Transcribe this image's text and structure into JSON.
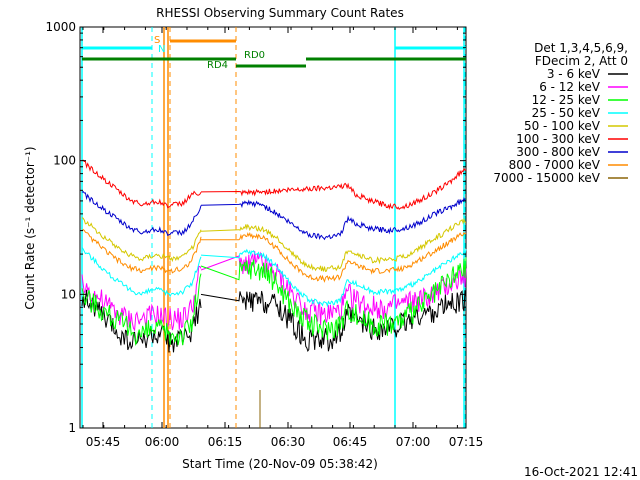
{
  "chart_data": {
    "type": "line",
    "title": "RHESSI Observing Summary Count Rates",
    "xlabel": "Start Time (20-Nov-09 05:38:42)",
    "ylabel": "Count Rate (s⁻¹ detector⁻¹)",
    "yscale": "log",
    "ylim": [
      1,
      1000
    ],
    "xlim_minutes": [
      5.0,
      97.5
    ],
    "x_ticks": [
      {
        "label": "05:45",
        "min": 5.0
      },
      {
        "label": "06:00",
        "min": 20.0
      },
      {
        "label": "06:15",
        "min": 35.0
      },
      {
        "label": "06:30",
        "min": 50.0
      },
      {
        "label": "06:45",
        "min": 65.0
      },
      {
        "label": "07:00",
        "min": 80.0
      },
      {
        "label": "07:15",
        "min": 95.0
      }
    ],
    "y_ticks": [
      {
        "label": "1",
        "value": 1
      },
      {
        "label": "10",
        "value": 10
      },
      {
        "label": "100",
        "value": 100
      },
      {
        "label": "1000",
        "value": 1000
      }
    ],
    "legend": {
      "header": [
        "Det 1,3,4,5,6,9,",
        "FDecim 2, Att 0"
      ],
      "position": "right"
    },
    "series": [
      {
        "name": "3 - 6 keV",
        "color": "#000000",
        "curve": [
          [
            0,
            10
          ],
          [
            6,
            6
          ],
          [
            10,
            4.5
          ],
          [
            13,
            4.5
          ],
          [
            16,
            5
          ],
          [
            19,
            4.5
          ],
          [
            22,
            4.5
          ],
          [
            24,
            5.5
          ],
          [
            26,
            8.5
          ],
          [
            28,
            9
          ],
          [
            32,
            9
          ],
          [
            36,
            8.5
          ],
          [
            40,
            6
          ],
          [
            44,
            4.5
          ],
          [
            48,
            4.5
          ],
          [
            52,
            5
          ],
          [
            54,
            7
          ],
          [
            56,
            6.5
          ],
          [
            60,
            5.5
          ],
          [
            64,
            5.5
          ],
          [
            68,
            6
          ],
          [
            72,
            7
          ],
          [
            76,
            7.5
          ],
          [
            80,
            8.5
          ],
          [
            84,
            9
          ]
        ]
      },
      {
        "name": "6 - 12 keV",
        "color": "#ff00ff",
        "curve": [
          [
            0,
            12
          ],
          [
            6,
            8
          ],
          [
            10,
            6.5
          ],
          [
            13,
            6.5
          ],
          [
            16,
            7
          ],
          [
            19,
            6.5
          ],
          [
            22,
            6.5
          ],
          [
            24,
            8
          ],
          [
            26,
            16
          ],
          [
            28,
            17.5
          ],
          [
            32,
            17
          ],
          [
            36,
            14
          ],
          [
            40,
            10
          ],
          [
            44,
            7.5
          ],
          [
            48,
            7
          ],
          [
            52,
            7.5
          ],
          [
            54,
            10
          ],
          [
            56,
            9
          ],
          [
            60,
            8
          ],
          [
            64,
            8
          ],
          [
            68,
            8.5
          ],
          [
            72,
            9
          ],
          [
            76,
            10
          ],
          [
            80,
            12
          ],
          [
            84,
            14
          ]
        ]
      },
      {
        "name": "12 - 25 keV",
        "color": "#00ff00",
        "curve": [
          [
            0,
            10
          ],
          [
            6,
            7
          ],
          [
            10,
            5.5
          ],
          [
            13,
            5
          ],
          [
            16,
            5.5
          ],
          [
            19,
            5
          ],
          [
            22,
            5
          ],
          [
            24,
            6
          ],
          [
            26,
            14
          ],
          [
            28,
            16
          ],
          [
            32,
            15.5
          ],
          [
            36,
            12
          ],
          [
            40,
            8
          ],
          [
            44,
            6
          ],
          [
            48,
            5.5
          ],
          [
            52,
            6
          ],
          [
            54,
            8
          ],
          [
            56,
            7
          ],
          [
            60,
            6
          ],
          [
            64,
            6
          ],
          [
            68,
            6.5
          ],
          [
            72,
            8
          ],
          [
            76,
            10
          ],
          [
            80,
            13
          ],
          [
            84,
            16
          ]
        ]
      },
      {
        "name": "25 - 50 keV",
        "color": "#00ffff",
        "curve": [
          [
            0,
            22
          ],
          [
            6,
            14
          ],
          [
            10,
            11
          ],
          [
            13,
            10
          ],
          [
            16,
            11
          ],
          [
            19,
            10
          ],
          [
            22,
            10.5
          ],
          [
            24,
            12
          ],
          [
            26,
            19
          ],
          [
            28,
            21
          ],
          [
            32,
            20
          ],
          [
            36,
            16
          ],
          [
            40,
            11.5
          ],
          [
            44,
            9
          ],
          [
            48,
            8.5
          ],
          [
            52,
            9
          ],
          [
            54,
            13
          ],
          [
            56,
            12
          ],
          [
            60,
            10.5
          ],
          [
            64,
            10.5
          ],
          [
            68,
            11
          ],
          [
            72,
            12.5
          ],
          [
            76,
            15
          ],
          [
            80,
            18
          ],
          [
            84,
            21
          ]
        ]
      },
      {
        "name": "50 - 100 keV",
        "color": "#d4c800",
        "curve": [
          [
            0,
            37
          ],
          [
            6,
            25
          ],
          [
            10,
            20
          ],
          [
            13,
            18.5
          ],
          [
            16,
            20
          ],
          [
            19,
            18.5
          ],
          [
            22,
            19
          ],
          [
            24,
            22
          ],
          [
            26,
            30
          ],
          [
            28,
            32
          ],
          [
            32,
            31
          ],
          [
            36,
            26
          ],
          [
            40,
            20
          ],
          [
            44,
            16
          ],
          [
            48,
            15.5
          ],
          [
            52,
            16
          ],
          [
            54,
            22
          ],
          [
            56,
            20
          ],
          [
            60,
            18
          ],
          [
            64,
            18
          ],
          [
            68,
            19
          ],
          [
            72,
            22
          ],
          [
            76,
            26
          ],
          [
            80,
            31
          ],
          [
            84,
            36
          ]
        ]
      },
      {
        "name": "100 - 300 keV",
        "color": "#ff0000",
        "curve": [
          [
            0,
            100
          ],
          [
            6,
            67
          ],
          [
            10,
            52
          ],
          [
            13,
            47
          ],
          [
            16,
            50
          ],
          [
            19,
            46
          ],
          [
            22,
            48
          ],
          [
            24,
            56
          ],
          [
            26,
            null
          ],
          [
            30,
            null
          ],
          [
            40,
            null
          ],
          [
            52,
            null
          ],
          [
            54,
            65
          ],
          [
            56,
            56
          ],
          [
            60,
            50
          ],
          [
            64,
            46
          ],
          [
            68,
            45
          ],
          [
            72,
            50
          ],
          [
            76,
            58
          ],
          [
            80,
            70
          ],
          [
            84,
            88
          ]
        ]
      },
      {
        "name": "300 - 800 keV",
        "color": "#0000cc",
        "curve": [
          [
            0,
            58
          ],
          [
            6,
            40
          ],
          [
            10,
            32
          ],
          [
            13,
            29
          ],
          [
            16,
            31
          ],
          [
            19,
            28.5
          ],
          [
            22,
            29
          ],
          [
            24,
            34
          ],
          [
            26,
            45
          ],
          [
            28,
            48
          ],
          [
            32,
            47
          ],
          [
            36,
            40
          ],
          [
            40,
            33
          ],
          [
            44,
            28
          ],
          [
            48,
            27
          ],
          [
            52,
            28
          ],
          [
            54,
            37
          ],
          [
            56,
            34
          ],
          [
            60,
            31
          ],
          [
            64,
            30
          ],
          [
            68,
            31
          ],
          [
            72,
            34
          ],
          [
            76,
            40
          ],
          [
            80,
            45
          ],
          [
            84,
            52
          ]
        ]
      },
      {
        "name": "800 - 7000 keV",
        "color": "#ff8c00",
        "curve": [
          [
            0,
            30
          ],
          [
            6,
            20
          ],
          [
            10,
            16
          ],
          [
            13,
            15
          ],
          [
            16,
            16
          ],
          [
            19,
            15
          ],
          [
            22,
            15.5
          ],
          [
            24,
            18
          ],
          [
            26,
            26
          ],
          [
            28,
            28
          ],
          [
            32,
            27
          ],
          [
            36,
            22
          ],
          [
            40,
            16.5
          ],
          [
            44,
            13.5
          ],
          [
            48,
            13
          ],
          [
            52,
            13.5
          ],
          [
            54,
            18
          ],
          [
            56,
            16.5
          ],
          [
            60,
            15
          ],
          [
            64,
            15
          ],
          [
            68,
            15.5
          ],
          [
            72,
            18
          ],
          [
            76,
            21
          ],
          [
            80,
            25
          ],
          [
            84,
            29
          ]
        ]
      },
      {
        "name": "7000 - 15000 keV",
        "color": "#8b6508",
        "curve": []
      }
    ],
    "annotations": {
      "labels": [
        "S",
        "N",
        "RD0",
        "RD4"
      ],
      "cyan_color": "#00ffff",
      "orange_color": "#ff8c00",
      "green_color": "#008000"
    },
    "timestamp": "16-Oct-2021 12:41"
  }
}
